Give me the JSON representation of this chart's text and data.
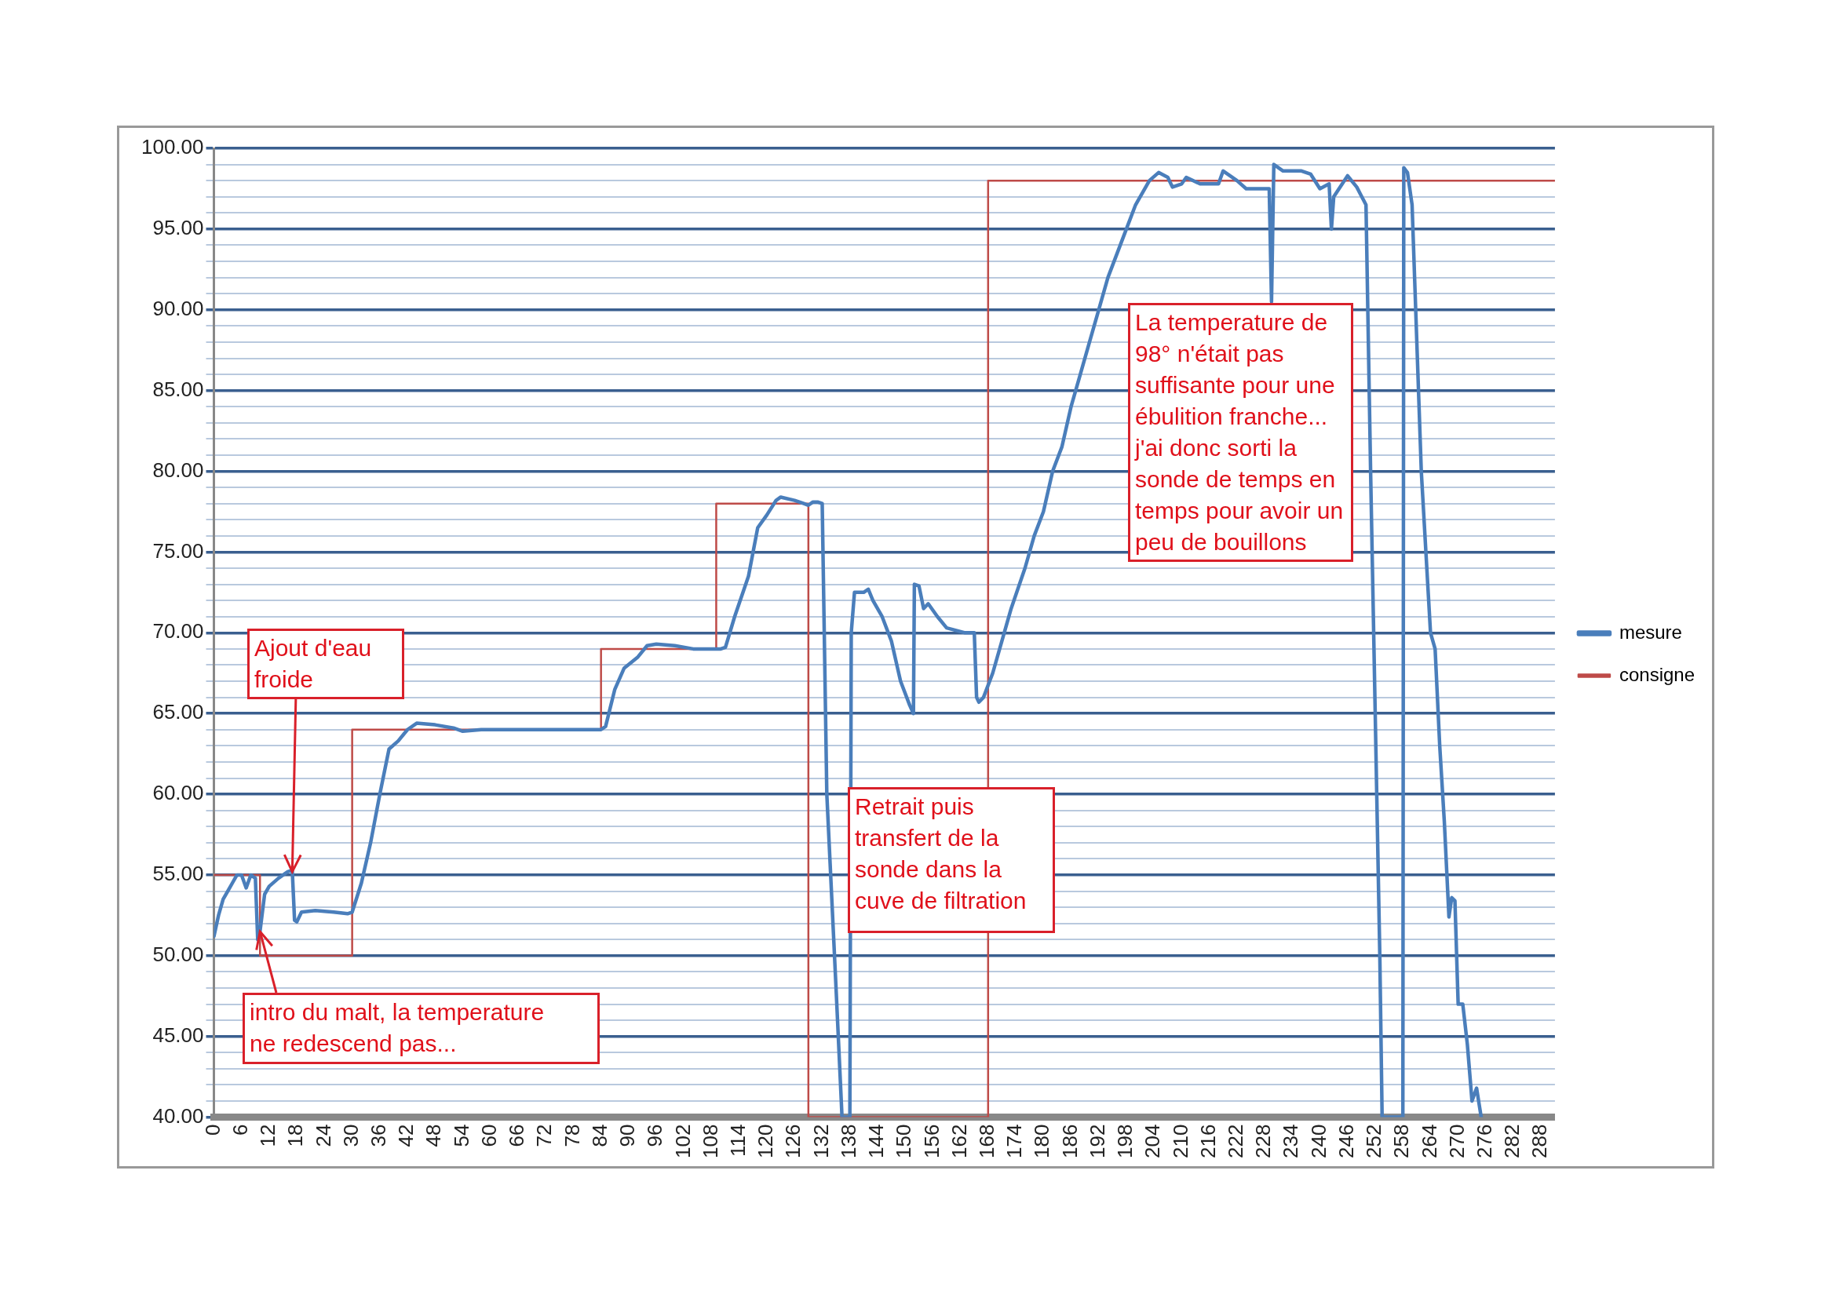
{
  "chart_data": {
    "type": "line",
    "grid": "y",
    "legend": "right",
    "xlim": [
      0,
      291
    ],
    "xticks": [
      0,
      6,
      12,
      18,
      24,
      30,
      36,
      42,
      48,
      54,
      60,
      66,
      72,
      78,
      84,
      90,
      96,
      102,
      108,
      114,
      120,
      126,
      132,
      138,
      144,
      150,
      156,
      162,
      168,
      174,
      180,
      186,
      192,
      198,
      204,
      210,
      216,
      222,
      228,
      234,
      240,
      246,
      252,
      258,
      264,
      270,
      276,
      282,
      288
    ],
    "ylim": [
      40,
      100
    ],
    "yticks": [
      {
        "value": 40,
        "label": "40.00"
      },
      {
        "value": 41,
        "label": null
      },
      {
        "value": 42,
        "label": null
      },
      {
        "value": 43,
        "label": null
      },
      {
        "value": 44,
        "label": null
      },
      {
        "value": 45,
        "label": "45.00"
      },
      {
        "value": 46,
        "label": null
      },
      {
        "value": 47,
        "label": null
      },
      {
        "value": 48,
        "label": null
      },
      {
        "value": 49,
        "label": null
      },
      {
        "value": 50,
        "label": "50.00"
      },
      {
        "value": 51,
        "label": null
      },
      {
        "value": 52,
        "label": null
      },
      {
        "value": 53,
        "label": null
      },
      {
        "value": 54,
        "label": null
      },
      {
        "value": 55,
        "label": "55.00"
      },
      {
        "value": 56,
        "label": null
      },
      {
        "value": 57,
        "label": null
      },
      {
        "value": 58,
        "label": null
      },
      {
        "value": 59,
        "label": null
      },
      {
        "value": 60,
        "label": "60.00"
      },
      {
        "value": 61,
        "label": null
      },
      {
        "value": 62,
        "label": null
      },
      {
        "value": 63,
        "label": null
      },
      {
        "value": 64,
        "label": null
      },
      {
        "value": 65,
        "label": "65.00"
      },
      {
        "value": 66,
        "label": null
      },
      {
        "value": 67,
        "label": null
      },
      {
        "value": 68,
        "label": null
      },
      {
        "value": 69,
        "label": null
      },
      {
        "value": 70,
        "label": "70.00"
      },
      {
        "value": 71,
        "label": null
      },
      {
        "value": 72,
        "label": null
      },
      {
        "value": 73,
        "label": null
      },
      {
        "value": 74,
        "label": null
      },
      {
        "value": 75,
        "label": "75.00"
      },
      {
        "value": 76,
        "label": null
      },
      {
        "value": 77,
        "label": null
      },
      {
        "value": 78,
        "label": null
      },
      {
        "value": 79,
        "label": null
      },
      {
        "value": 80,
        "label": "80.00"
      },
      {
        "value": 81,
        "label": null
      },
      {
        "value": 82,
        "label": null
      },
      {
        "value": 83,
        "label": null
      },
      {
        "value": 84,
        "label": null
      },
      {
        "value": 85,
        "label": "85.00"
      },
      {
        "value": 86,
        "label": null
      },
      {
        "value": 87,
        "label": null
      },
      {
        "value": 88,
        "label": null
      },
      {
        "value": 89,
        "label": null
      },
      {
        "value": 90,
        "label": "90.00"
      },
      {
        "value": 91,
        "label": null
      },
      {
        "value": 92,
        "label": null
      },
      {
        "value": 93,
        "label": null
      },
      {
        "value": 94,
        "label": null
      },
      {
        "value": 95,
        "label": "95.00"
      },
      {
        "value": 96,
        "label": null
      },
      {
        "value": 97,
        "label": null
      },
      {
        "value": 98,
        "label": null
      },
      {
        "value": 99,
        "label": null
      },
      {
        "value": 100,
        "label": "100.00"
      }
    ],
    "series": [
      {
        "name": "mesure",
        "color": "#4a7ebb",
        "x": [
          0,
          1,
          2,
          3,
          4,
          5,
          6,
          7,
          8,
          9,
          9.5,
          10,
          11,
          12,
          14,
          16,
          17,
          17.5,
          18,
          19,
          22,
          26,
          29,
          30,
          32,
          34,
          36,
          38,
          40,
          42,
          44,
          48,
          52,
          54,
          58,
          66,
          74,
          80,
          84,
          85,
          87,
          89,
          92,
          94,
          96,
          100,
          104,
          108,
          110,
          111,
          113,
          116,
          118,
          120,
          122,
          123,
          126,
          128,
          129,
          130,
          131,
          132,
          133,
          135,
          136.3,
          138,
          138.3,
          139,
          141,
          142,
          143,
          145,
          147,
          149,
          151,
          151.8,
          152,
          153,
          154,
          155,
          157,
          159,
          163,
          165,
          165.5,
          166,
          167,
          169,
          171,
          173,
          176,
          178,
          180,
          182,
          184,
          186,
          188,
          190,
          192,
          194,
          198,
          200,
          203,
          205,
          207,
          208,
          210,
          211,
          214,
          218,
          219,
          222,
          224,
          229,
          229.5,
          230,
          232,
          236,
          238,
          240,
          242,
          242.5,
          243,
          246,
          248,
          250,
          251,
          253,
          253.5,
          258,
          258.2,
          259,
          260,
          262,
          264,
          265,
          266,
          267,
          268,
          268.6,
          269.3,
          270,
          271,
          272,
          273,
          274,
          275
        ],
        "values": [
          51.2,
          52.5,
          53.5,
          54,
          54.5,
          55,
          55,
          54.2,
          55,
          54.8,
          51,
          51.5,
          53.8,
          54.3,
          54.8,
          55.2,
          55.3,
          52.2,
          52.1,
          52.7,
          52.8,
          52.7,
          52.6,
          52.7,
          54.5,
          57,
          60,
          62.8,
          63.3,
          64,
          64.4,
          64.3,
          64.1,
          63.9,
          64,
          64,
          64,
          64,
          64,
          64.2,
          66.5,
          67.8,
          68.5,
          69.2,
          69.3,
          69.2,
          69,
          69,
          69,
          69.1,
          71,
          73.5,
          76.5,
          77.3,
          78.2,
          78.4,
          78.2,
          78,
          77.9,
          78.1,
          78.1,
          78,
          60,
          48,
          40,
          40,
          70,
          72.5,
          72.5,
          72.7,
          72,
          71,
          69.5,
          67,
          65.5,
          65,
          73,
          72.9,
          71.5,
          71.8,
          71,
          70.3,
          70,
          70,
          66,
          65.7,
          66,
          67.5,
          69.5,
          71.5,
          74,
          76,
          77.5,
          80,
          81.5,
          84,
          86,
          88,
          90,
          92,
          95,
          96.5,
          98,
          98.5,
          98.2,
          97.6,
          97.8,
          98.2,
          97.8,
          97.8,
          98.6,
          98,
          97.5,
          97.5,
          90.5,
          99,
          98.6,
          98.6,
          98.4,
          97.5,
          97.8,
          95,
          97,
          98.3,
          97.6,
          96.5,
          80,
          50,
          40,
          40,
          98.8,
          98.5,
          96.5,
          80,
          70,
          69,
          63,
          58.3,
          52.4,
          53.6,
          53.4,
          47,
          47,
          44.5,
          41,
          41.8,
          40
        ]
      },
      {
        "name": "consigne",
        "color": "#be4b48",
        "x": [
          0,
          10,
          10,
          30,
          30,
          84,
          84,
          109,
          109,
          129,
          129,
          168,
          168,
          291
        ],
        "values": [
          55,
          55,
          50,
          50,
          64,
          64,
          69,
          69,
          78,
          78,
          40,
          40,
          98,
          98
        ]
      }
    ],
    "annotations": [
      {
        "text": "Ajout d'eau froide",
        "x": 17,
        "y": 55.2
      },
      {
        "text": "intro du malt, la  temperature ne redescend pas...",
        "x": 10,
        "y": 51.5
      },
      "Retrait puis transfert de la sonde dans la cuve de filtration",
      "La temperature de 98° n'était pas suffisante pour une ébulition franche... j'ai donc sorti la sonde de temps en temps pour avoir un peu de bouillons"
    ]
  }
}
